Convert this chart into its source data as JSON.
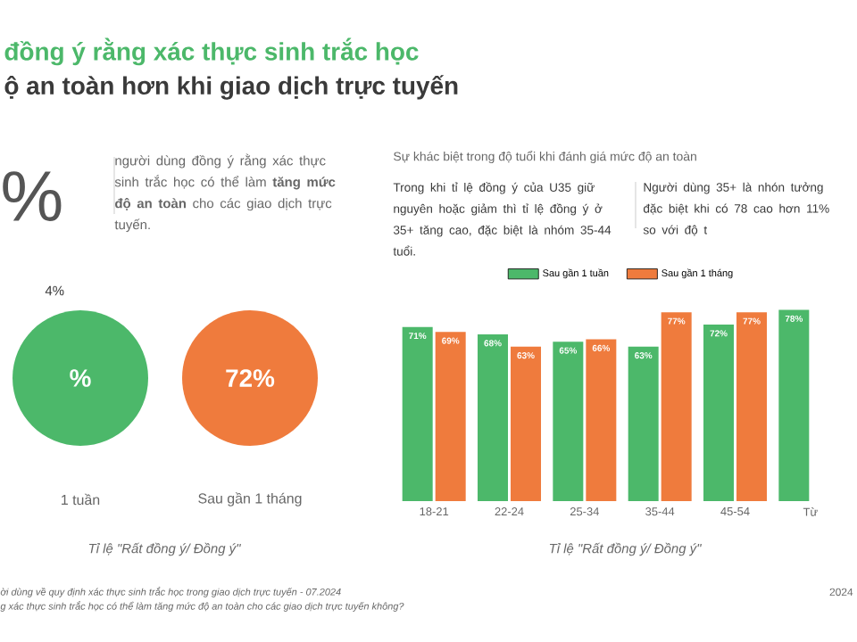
{
  "chart_data": [
    {
      "type": "other",
      "title": "đồng ý rằng xác thực sinh trắc học",
      "subtitle": "ộ an toàn hơn khi giao dịch trực tuyến",
      "categories": [
        "1 tuần",
        "Sau gần 1 tháng"
      ],
      "colors": [
        "#4cb86a",
        "#ef7b3d"
      ],
      "xlabel": "Tỉ lệ \"Rất đồng ý/ Đồng ý\"",
      "annotations": [
        "%",
        "người dùng đồng ý rằng xác thực sinh trắc học có thể làm **tăng mức độ an toàn** cho các giao dịch trực tuyến.",
        "4%",
        "ời dùng về quy định xác thực sinh trắc học trong giao dịch trực tuyến - 07.2024",
        "g xác thực sinh trắc học có thể làm tăng mức độ an toàn cho các giao dịch trực tuyến không?",
        "2024",
        "%",
        "72%"
      ]
    },
    {
      "type": "bar",
      "title": "Sự khác biệt trong độ tuổi khi đánh giá mức độ an toàn",
      "categories": [
        "18-21",
        "22-24",
        "25-34",
        "35-44",
        "45-54",
        "Từ"
      ],
      "series": [
        {
          "name": "Sau gần 1 tuần",
          "color": "#4cb86a",
          "values": [
            71,
            68,
            65,
            63,
            72,
            78
          ],
          "value_labels": [
            "71%",
            "68%",
            "65%",
            "63%",
            "72%",
            "78%"
          ]
        },
        {
          "name": "Sau gần 1 tháng",
          "color": "#ef7b3d",
          "values": [
            69,
            63,
            66,
            77,
            77,
            null
          ],
          "value_labels": [
            "69%",
            "63%",
            "66%",
            "77%",
            "77%",
            null
          ]
        }
      ],
      "xlabel": "Tỉ lệ \"Rất đồng ý/ Đồng ý\"",
      "legend": "top",
      "annotations": [
        "Trong khi tỉ lệ đồng ý của U35 giữ nguyên hoặc giảm thì tỉ lệ đồng ý ở 35+ tăng cao, đặc biệt là nhóm 35-44 tuổi.",
        "Người dùng 35+ là nhón tưởng đặc biệt khi có 78 cao hơn 11% so với độ t"
      ]
    }
  ]
}
